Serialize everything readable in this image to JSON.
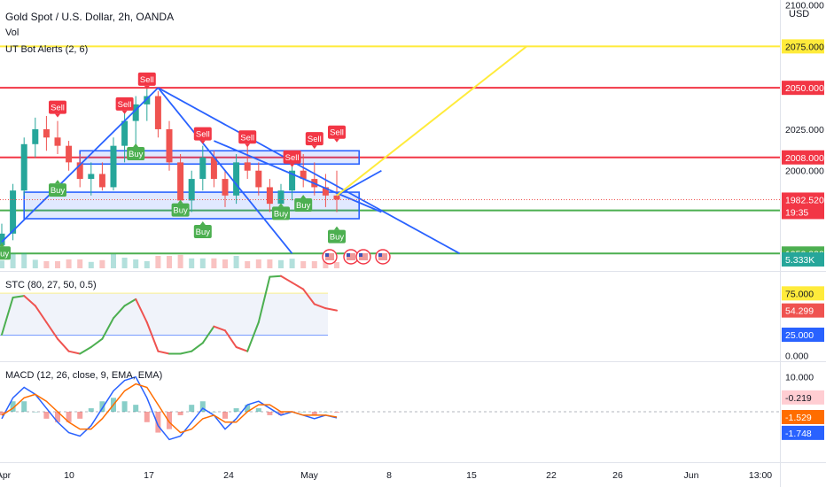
{
  "legends": {
    "main_title": "Gold Spot / U.S. Dollar, 2h, OANDA",
    "volume": "Vol",
    "ut_bot": "UT Bot Alerts (2, 6)",
    "stc": "STC (80, 27, 50, 0.5)",
    "macd": "MACD (12, 26, close, 9, EMA, EMA)"
  },
  "currency": "USD",
  "colors": {
    "up": "#26a69a",
    "down": "#ef5350",
    "red_level": "#f23645",
    "green_level": "#4caf50",
    "yellow_level": "#ffeb3b",
    "trendline": "#2962ff",
    "sell_signal": "#f23645",
    "buy_signal": "#4caf50",
    "stc_band": "#f0f3fa",
    "macd_line": "#2962ff",
    "signal_line": "#ff6d00"
  },
  "chart_data": [
    {
      "type": "candlestick",
      "pane": "price",
      "title": "Gold Spot / U.S. Dollar, 2h, OANDA",
      "y_range": [
        1940,
        2103
      ],
      "y_ticks": [
        {
          "value": 2100,
          "label": "2100.000"
        },
        {
          "value": 2025,
          "label": "2025.000"
        },
        {
          "value": 2000,
          "label": "2000.000"
        }
      ],
      "x_ticks": [
        "Apr",
        "10",
        "17",
        "24",
        "May",
        "8",
        "15",
        "22",
        "26",
        "Jun",
        "13:00"
      ],
      "levels": [
        {
          "value": 2075,
          "label": "2075.000",
          "color": "yellow"
        },
        {
          "value": 2050,
          "label": "2050.000",
          "color": "red"
        },
        {
          "value": 2008,
          "label": "2008.000",
          "color": "red"
        },
        {
          "value": 1976,
          "label": "1976.000",
          "color": "green"
        },
        {
          "value": 1950,
          "label": "1950.000",
          "color": "green"
        }
      ],
      "last_price": {
        "value": 1982.52,
        "label": "1982.520",
        "countdown": "19:35"
      },
      "volume_label": "5.333K",
      "rectangles": [
        {
          "from_date": "Apr 8",
          "to_date": "May 3",
          "price_top": 2012,
          "price_bottom": 2004
        },
        {
          "from_date": "Apr 3",
          "to_date": "May 3",
          "price_top": 1987,
          "price_bottom": 1971
        }
      ],
      "trendlines": [
        {
          "from": {
            "date": "Apr 1",
            "price": 1957
          },
          "to": {
            "date": "Apr 15",
            "price": 2050
          }
        },
        {
          "from": {
            "date": "Apr 15",
            "price": 2050
          },
          "to": {
            "date": "May 12",
            "price": 1950
          }
        },
        {
          "from": {
            "date": "Apr 15",
            "price": 2050
          },
          "to": {
            "date": "Apr 27",
            "price": 1950
          }
        },
        {
          "from": {
            "date": "Apr 20",
            "price": 2018
          },
          "to": {
            "date": "May 5",
            "price": 1975
          }
        },
        {
          "from": {
            "date": "May 1",
            "price": 1985
          },
          "to": {
            "date": "May 5",
            "price": 2000
          }
        }
      ],
      "projection": {
        "from": {
          "date": "May 1",
          "price": 1985
        },
        "to": {
          "date": "May 18",
          "price": 2075
        }
      },
      "signals": [
        {
          "type": "Buy",
          "date": "Apr 1",
          "price": 1950
        },
        {
          "type": "Buy",
          "date": "Apr 6",
          "price": 1988
        },
        {
          "type": "Sell",
          "date": "Apr 6",
          "price": 2038
        },
        {
          "type": "Sell",
          "date": "Apr 12",
          "price": 2040
        },
        {
          "type": "Buy",
          "date": "Apr 13",
          "price": 2010
        },
        {
          "type": "Sell",
          "date": "Apr 14",
          "price": 2055
        },
        {
          "type": "Buy",
          "date": "Apr 17",
          "price": 1976
        },
        {
          "type": "Sell",
          "date": "Apr 19",
          "price": 2022
        },
        {
          "type": "Buy",
          "date": "Apr 19",
          "price": 1963
        },
        {
          "type": "Sell",
          "date": "Apr 23",
          "price": 2020
        },
        {
          "type": "Buy",
          "date": "Apr 26",
          "price": 1974
        },
        {
          "type": "Sell",
          "date": "Apr 27",
          "price": 2008
        },
        {
          "type": "Buy",
          "date": "Apr 28",
          "price": 1979
        },
        {
          "type": "Sell",
          "date": "Apr 29",
          "price": 2019
        },
        {
          "type": "Sell",
          "date": "May 1",
          "price": 2023
        },
        {
          "type": "Buy",
          "date": "May 1",
          "price": 1960
        }
      ],
      "candles": [
        {
          "date": "Apr 1",
          "open": 1955,
          "high": 1968,
          "low": 1950,
          "close": 1962
        },
        {
          "date": "Apr 2",
          "open": 1962,
          "high": 1992,
          "low": 1958,
          "close": 1988
        },
        {
          "date": "Apr 3",
          "open": 1988,
          "high": 2020,
          "low": 1985,
          "close": 2016
        },
        {
          "date": "Apr 4",
          "open": 2016,
          "high": 2032,
          "low": 2008,
          "close": 2025
        },
        {
          "date": "Apr 5",
          "open": 2025,
          "high": 2033,
          "low": 2012,
          "close": 2020
        },
        {
          "date": "Apr 6",
          "open": 2020,
          "high": 2030,
          "low": 2010,
          "close": 2015
        },
        {
          "date": "Apr 7",
          "open": 2015,
          "high": 2018,
          "low": 2000,
          "close": 2005
        },
        {
          "date": "Apr 8",
          "open": 2005,
          "high": 2010,
          "low": 1990,
          "close": 1995
        },
        {
          "date": "Apr 9",
          "open": 1995,
          "high": 2005,
          "low": 1985,
          "close": 1998
        },
        {
          "date": "Apr 10",
          "open": 1998,
          "high": 2005,
          "low": 1988,
          "close": 1990
        },
        {
          "date": "Apr 11",
          "open": 1990,
          "high": 2020,
          "low": 1988,
          "close": 2015
        },
        {
          "date": "Apr 12",
          "open": 2015,
          "high": 2035,
          "low": 2005,
          "close": 2030
        },
        {
          "date": "Apr 13",
          "open": 2030,
          "high": 2045,
          "low": 2015,
          "close": 2040
        },
        {
          "date": "Apr 14",
          "open": 2040,
          "high": 2050,
          "low": 2030,
          "close": 2045
        },
        {
          "date": "Apr 15",
          "open": 2045,
          "high": 2048,
          "low": 2020,
          "close": 2025
        },
        {
          "date": "Apr 16",
          "open": 2025,
          "high": 2030,
          "low": 2000,
          "close": 2005
        },
        {
          "date": "Apr 17",
          "open": 2005,
          "high": 2010,
          "low": 1978,
          "close": 1982
        },
        {
          "date": "Apr 18",
          "open": 1982,
          "high": 2000,
          "low": 1975,
          "close": 1995
        },
        {
          "date": "Apr 19",
          "open": 1995,
          "high": 2015,
          "low": 1988,
          "close": 2008
        },
        {
          "date": "Apr 20",
          "open": 2008,
          "high": 2012,
          "low": 1990,
          "close": 1995
        },
        {
          "date": "Apr 21",
          "open": 1995,
          "high": 2000,
          "low": 1978,
          "close": 1985
        },
        {
          "date": "Apr 22",
          "open": 1985,
          "high": 2010,
          "low": 1980,
          "close": 2005
        },
        {
          "date": "Apr 23",
          "open": 2005,
          "high": 2015,
          "low": 1995,
          "close": 2000
        },
        {
          "date": "Apr 24",
          "open": 2000,
          "high": 2005,
          "low": 1985,
          "close": 1990
        },
        {
          "date": "Apr 25",
          "open": 1990,
          "high": 1995,
          "low": 1975,
          "close": 1980
        },
        {
          "date": "Apr 26",
          "open": 1980,
          "high": 1992,
          "low": 1972,
          "close": 1988
        },
        {
          "date": "Apr 27",
          "open": 1988,
          "high": 2005,
          "low": 1982,
          "close": 2000
        },
        {
          "date": "Apr 28",
          "open": 2000,
          "high": 2010,
          "low": 1990,
          "close": 1995
        },
        {
          "date": "Apr 29",
          "open": 1995,
          "high": 2005,
          "low": 1985,
          "close": 1990
        },
        {
          "date": "Apr 30",
          "open": 1990,
          "high": 1998,
          "low": 1978,
          "close": 1985
        },
        {
          "date": "May 1",
          "open": 1985,
          "high": 2000,
          "low": 1975,
          "close": 1982.52
        }
      ]
    },
    {
      "type": "line",
      "pane": "stc",
      "title": "STC (80, 27, 50, 0.5)",
      "y_range": [
        -5,
        100
      ],
      "levels": [
        {
          "value": 75,
          "label": "75.000"
        },
        {
          "value": 25,
          "label": "25.000"
        }
      ],
      "axis_labels": [
        {
          "value": 0,
          "label": "0.000"
        }
      ],
      "last_value": {
        "value": 54.299,
        "label": "54.299"
      },
      "series": [
        {
          "name": "STC",
          "dates": [
            "Apr 1",
            "Apr 2",
            "Apr 3",
            "Apr 4",
            "Apr 5",
            "Apr 6",
            "Apr 7",
            "Apr 8",
            "Apr 9",
            "Apr 10",
            "Apr 11",
            "Apr 12",
            "Apr 13",
            "Apr 14",
            "Apr 15",
            "Apr 16",
            "Apr 17",
            "Apr 18",
            "Apr 19",
            "Apr 20",
            "Apr 21",
            "Apr 22",
            "Apr 23",
            "Apr 24",
            "Apr 25",
            "Apr 26",
            "Apr 27",
            "Apr 28",
            "Apr 29",
            "Apr 30",
            "May 1"
          ],
          "values": [
            25,
            70,
            72,
            60,
            40,
            20,
            5,
            2,
            10,
            20,
            45,
            60,
            68,
            40,
            5,
            2,
            2,
            5,
            15,
            35,
            30,
            10,
            5,
            40,
            95,
            96,
            88,
            80,
            62,
            57,
            54.3
          ]
        }
      ]
    },
    {
      "type": "line",
      "pane": "macd",
      "title": "MACD (12, 26, close, 9, EMA, EMA)",
      "y_range": [
        -14,
        14
      ],
      "axis_labels": [
        {
          "value": 10,
          "label": "10.000"
        }
      ],
      "last_values": [
        {
          "name": "Histogram",
          "value": -0.219,
          "label": "-0.219"
        },
        {
          "name": "Signal",
          "value": -1.529,
          "label": "-1.529"
        },
        {
          "name": "MACD",
          "value": -1.748,
          "label": "-1.748"
        }
      ],
      "series": [
        {
          "name": "MACD",
          "dates": [
            "Apr 1",
            "Apr 2",
            "Apr 3",
            "Apr 4",
            "Apr 5",
            "Apr 6",
            "Apr 7",
            "Apr 8",
            "Apr 9",
            "Apr 10",
            "Apr 11",
            "Apr 12",
            "Apr 13",
            "Apr 14",
            "Apr 15",
            "Apr 16",
            "Apr 17",
            "Apr 18",
            "Apr 19",
            "Apr 20",
            "Apr 21",
            "Apr 22",
            "Apr 23",
            "Apr 24",
            "Apr 25",
            "Apr 26",
            "Apr 27",
            "Apr 28",
            "Apr 29",
            "Apr 30",
            "May 1"
          ],
          "values": [
            -2,
            4,
            7,
            5,
            1,
            -3,
            -6,
            -7,
            -4,
            1,
            6,
            9,
            10,
            4,
            -4,
            -8,
            -7,
            -3,
            1,
            -1,
            -5,
            -2,
            2,
            3,
            1,
            -1,
            0,
            -1,
            -2,
            -1,
            -1.748
          ]
        },
        {
          "name": "Signal",
          "dates": [
            "Apr 1",
            "Apr 2",
            "Apr 3",
            "Apr 4",
            "Apr 5",
            "Apr 6",
            "Apr 7",
            "Apr 8",
            "Apr 9",
            "Apr 10",
            "Apr 11",
            "Apr 12",
            "Apr 13",
            "Apr 14",
            "Apr 15",
            "Apr 16",
            "Apr 17",
            "Apr 18",
            "Apr 19",
            "Apr 20",
            "Apr 21",
            "Apr 22",
            "Apr 23",
            "Apr 24",
            "Apr 25",
            "Apr 26",
            "Apr 27",
            "Apr 28",
            "Apr 29",
            "Apr 30",
            "May 1"
          ],
          "values": [
            -1,
            1,
            4,
            5,
            3,
            0,
            -3,
            -5,
            -5,
            -2,
            2,
            6,
            8,
            7,
            2,
            -3,
            -6,
            -5,
            -2,
            -1,
            -3,
            -3,
            0,
            2,
            2,
            0,
            0,
            -1,
            -1,
            -1,
            -1.529
          ]
        }
      ]
    }
  ]
}
